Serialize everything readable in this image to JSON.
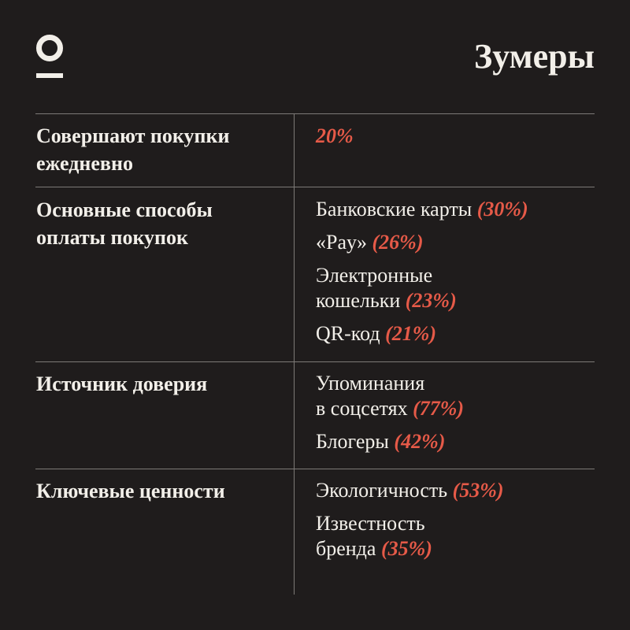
{
  "title": "Зумеры",
  "logo": {
    "icon": "logo-mark-icon"
  },
  "colors": {
    "background": "#1f1c1c",
    "text": "#f2efe9",
    "accent": "#e65a48",
    "divider": "#7d7a77"
  },
  "rows": [
    {
      "label_lines": [
        "Совершают покупки",
        "ежедневно"
      ],
      "items": [
        {
          "lines": [],
          "pct": "20%"
        }
      ]
    },
    {
      "label_lines": [
        "Основные способы",
        "оплаты покупок"
      ],
      "items": [
        {
          "lines": [
            "Банковские карты"
          ],
          "pct": "(30%)"
        },
        {
          "lines": [
            "«Pay»"
          ],
          "pct": "(26%)"
        },
        {
          "lines": [
            "Электронные",
            "кошельки"
          ],
          "pct": "(23%)"
        },
        {
          "lines": [
            "QR-код"
          ],
          "pct": "(21%)"
        }
      ]
    },
    {
      "label_lines": [
        "Источник доверия"
      ],
      "items": [
        {
          "lines": [
            "Упоминания",
            "в соцсетях"
          ],
          "pct": "(77%)"
        },
        {
          "lines": [
            "Блогеры"
          ],
          "pct": "(42%)"
        }
      ]
    },
    {
      "label_lines": [
        "Ключевые ценности"
      ],
      "items": [
        {
          "lines": [
            "Экологичность"
          ],
          "pct": "(53%)"
        },
        {
          "lines": [
            "Известность",
            "бренда"
          ],
          "pct": "(35%)"
        }
      ]
    }
  ]
}
